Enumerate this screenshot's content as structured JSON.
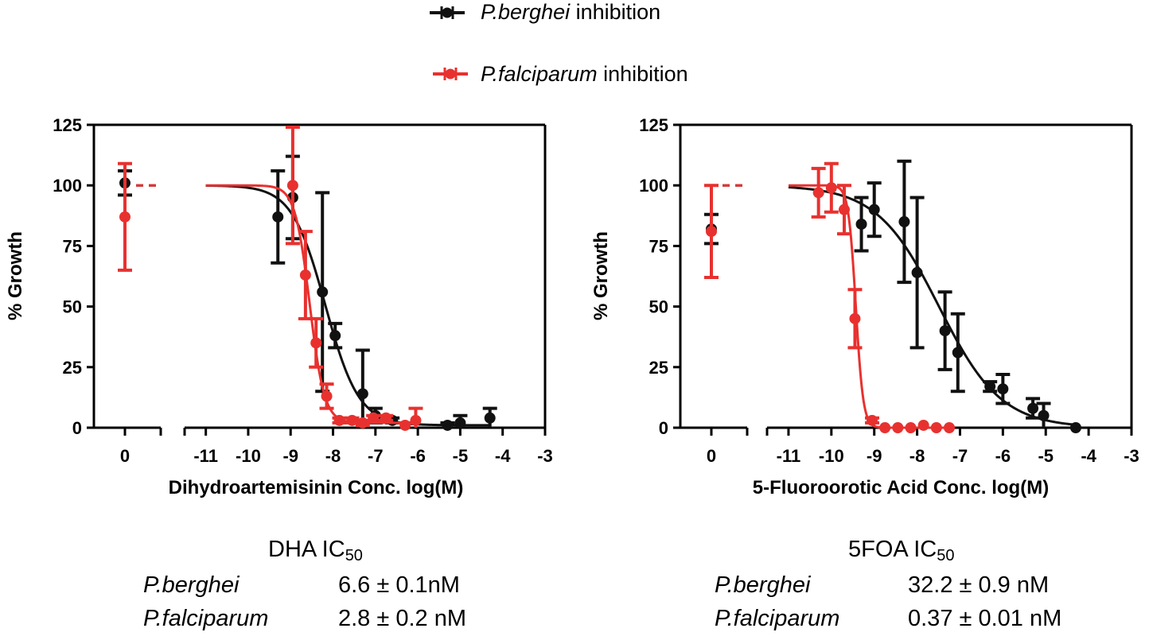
{
  "legend": [
    {
      "species": "P.berghei",
      "suffix": " inhibition",
      "color": "#111111"
    },
    {
      "species": "P.falciparum",
      "suffix": " inhibition",
      "color": "#e8312f"
    }
  ],
  "chart_data": [
    {
      "type": "scatter",
      "xlabel": "Dihydroartemisinin Conc. log(M)",
      "ylabel": "% Growth",
      "ylim": [
        0,
        125
      ],
      "yticks": [
        0,
        25,
        50,
        75,
        100,
        125
      ],
      "xlim": [
        -11.5,
        -3
      ],
      "xticks": [
        -11,
        -10,
        -9,
        -8,
        -7,
        -6,
        -5,
        -4,
        -3
      ],
      "zero_tick": "0",
      "axis_break": true,
      "series": [
        {
          "name": "P.berghei",
          "color": "#111111",
          "zero_point": {
            "y": 101,
            "err": 5
          },
          "points": [
            {
              "x": -9.3,
              "y": 87,
              "err": 19
            },
            {
              "x": -8.95,
              "y": 95,
              "err": 17
            },
            {
              "x": -8.25,
              "y": 56,
              "err": 41
            },
            {
              "x": -7.95,
              "y": 38,
              "err": 5
            },
            {
              "x": -7.3,
              "y": 14,
              "err": 18
            },
            {
              "x": -7.0,
              "y": 5,
              "err": 3
            },
            {
              "x": -6.6,
              "y": 3,
              "err": 1
            },
            {
              "x": -5.3,
              "y": 1,
              "err": 1
            },
            {
              "x": -5.0,
              "y": 2,
              "err": 3
            },
            {
              "x": -4.3,
              "y": 4,
              "err": 4
            }
          ],
          "fit": {
            "top": 100,
            "bottom": 1,
            "logic50": -8.18,
            "hill": 1.1,
            "xmin": -11,
            "xmax": -4.3
          }
        },
        {
          "name": "P.falciparum",
          "color": "#e8312f",
          "zero_point": {
            "y": 87,
            "err": 22
          },
          "points": [
            {
              "x": -8.95,
              "y": 100,
              "err": 24
            },
            {
              "x": -8.65,
              "y": 63,
              "err": 18
            },
            {
              "x": -8.4,
              "y": 35,
              "err": 10
            },
            {
              "x": -8.15,
              "y": 13,
              "err": 5
            },
            {
              "x": -7.85,
              "y": 3,
              "err": 1
            },
            {
              "x": -7.55,
              "y": 3,
              "err": 1
            },
            {
              "x": -7.3,
              "y": 2,
              "err": 1
            },
            {
              "x": -7.05,
              "y": 4,
              "err": 1
            },
            {
              "x": -6.75,
              "y": 4,
              "err": 1
            },
            {
              "x": -6.3,
              "y": 1,
              "err": 1
            },
            {
              "x": -6.05,
              "y": 3,
              "err": 5
            }
          ],
          "fit": {
            "top": 100,
            "bottom": 2,
            "logic50": -8.55,
            "hill": 2.5,
            "xmin": -11,
            "xmax": -6
          }
        }
      ]
    },
    {
      "type": "scatter",
      "xlabel": "5-Fluoroorotic Acid Conc. log(M)",
      "ylabel": "% Growth",
      "ylim": [
        0,
        125
      ],
      "yticks": [
        0,
        25,
        50,
        75,
        100,
        125
      ],
      "xlim": [
        -11.5,
        -3
      ],
      "xticks": [
        -11,
        -10,
        -9,
        -8,
        -7,
        -6,
        -5,
        -4,
        -3
      ],
      "zero_tick": "0",
      "axis_break": true,
      "series": [
        {
          "name": "P.berghei",
          "color": "#111111",
          "zero_point": {
            "y": 82,
            "err": 6
          },
          "points": [
            {
              "x": -9.3,
              "y": 84,
              "err": 11
            },
            {
              "x": -9.0,
              "y": 90,
              "err": 11
            },
            {
              "x": -8.3,
              "y": 85,
              "err": 25
            },
            {
              "x": -8.0,
              "y": 64,
              "err": 31
            },
            {
              "x": -7.35,
              "y": 40,
              "err": 16
            },
            {
              "x": -7.05,
              "y": 31,
              "err": 16
            },
            {
              "x": -6.3,
              "y": 17,
              "err": 2
            },
            {
              "x": -6.0,
              "y": 16,
              "err": 6
            },
            {
              "x": -5.3,
              "y": 8,
              "err": 4
            },
            {
              "x": -5.05,
              "y": 5,
              "err": 5
            },
            {
              "x": -4.3,
              "y": 0,
              "err": 0
            }
          ],
          "fit": {
            "top": 100,
            "bottom": 0,
            "logic50": -7.49,
            "hill": 0.6,
            "xmin": -11,
            "xmax": -4.3
          }
        },
        {
          "name": "P.falciparum",
          "color": "#e8312f",
          "zero_point": {
            "y": 81,
            "err": 19
          },
          "points": [
            {
              "x": -10.3,
              "y": 97,
              "err": 10
            },
            {
              "x": -10.0,
              "y": 99,
              "err": 10
            },
            {
              "x": -9.7,
              "y": 90,
              "err": 10
            },
            {
              "x": -9.45,
              "y": 45,
              "err": 12
            },
            {
              "x": -9.05,
              "y": 3,
              "err": 1
            },
            {
              "x": -8.75,
              "y": 0,
              "err": 0
            },
            {
              "x": -8.45,
              "y": 0,
              "err": 0
            },
            {
              "x": -8.15,
              "y": 0,
              "err": 0
            },
            {
              "x": -7.85,
              "y": 1,
              "err": 0
            },
            {
              "x": -7.55,
              "y": 0,
              "err": 0
            },
            {
              "x": -7.25,
              "y": 0,
              "err": 0
            }
          ],
          "fit": {
            "top": 100,
            "bottom": 0,
            "logic50": -9.43,
            "hill": 5,
            "xmin": -11,
            "xmax": -7.2
          }
        }
      ]
    }
  ],
  "ic50": [
    {
      "title": "DHA IC",
      "sub": "50",
      "rows": [
        {
          "species": "P.berghei",
          "value": "6.6 ± 0.1nM"
        },
        {
          "species": "P.falciparum",
          "value": "2.8 ± 0.2 nM"
        }
      ]
    },
    {
      "title": "5FOA IC",
      "sub": "50",
      "rows": [
        {
          "species": "P.berghei",
          "value": "32.2 ± 0.9 nM"
        },
        {
          "species": "P.falciparum",
          "value": "0.37 ± 0.01 nM"
        }
      ]
    }
  ]
}
